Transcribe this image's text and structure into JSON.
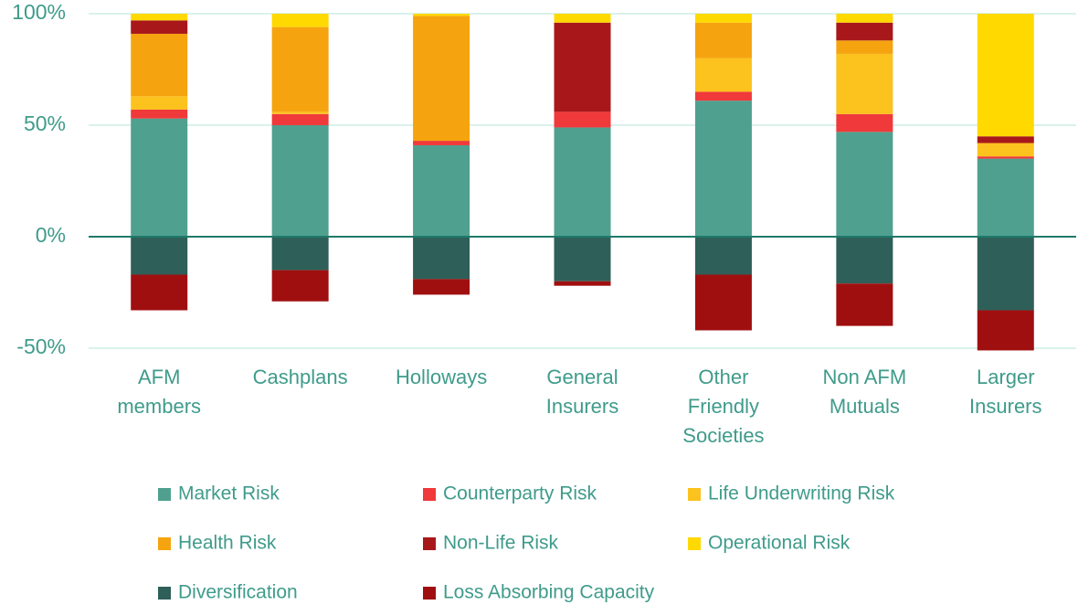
{
  "chart_data": {
    "type": "stacked_bar",
    "categories": [
      "AFM\nmembers",
      "Cashplans",
      "Holloways",
      "General\nInsurers",
      "Other\nFriendly\nSocieties",
      "Non AFM\nMutuals",
      "Larger\nInsurers"
    ],
    "series": [
      {
        "name": "Market Risk",
        "color": "#4fa08f",
        "values": [
          53,
          50,
          41,
          49,
          61,
          47,
          35
        ]
      },
      {
        "name": "Counterparty Risk",
        "color": "#f0393a",
        "values": [
          4,
          5,
          2,
          7,
          4,
          8,
          1
        ]
      },
      {
        "name": "Life Underwriting Risk",
        "color": "#fcc21d",
        "values": [
          6,
          1,
          0,
          0,
          15,
          27,
          6
        ]
      },
      {
        "name": "Health Risk",
        "color": "#f5a40f",
        "values": [
          28,
          38,
          56,
          0,
          16,
          6,
          0
        ]
      },
      {
        "name": "Non-Life Risk",
        "color": "#a8181b",
        "values": [
          6,
          0,
          0,
          40,
          0,
          8,
          3
        ]
      },
      {
        "name": "Operational Risk",
        "color": "#ffd900",
        "values": [
          3,
          6,
          1,
          4,
          4,
          4,
          55
        ]
      },
      {
        "name": "Diversification",
        "color": "#2e5f58",
        "values": [
          -17,
          -15,
          -19,
          -20,
          -17,
          -21,
          -33
        ]
      },
      {
        "name": "Loss Absorbing Capacity",
        "color": "#a00f10",
        "values": [
          -16,
          -14,
          -7,
          -2,
          -25,
          -19,
          -18
        ]
      }
    ],
    "ylim": [
      -50,
      100
    ],
    "yticks": [
      {
        "value": -50,
        "label": "-50%"
      },
      {
        "value": 0,
        "label": "0%"
      },
      {
        "value": 50,
        "label": "50%"
      },
      {
        "value": 100,
        "label": "100%"
      }
    ],
    "grid": true
  }
}
